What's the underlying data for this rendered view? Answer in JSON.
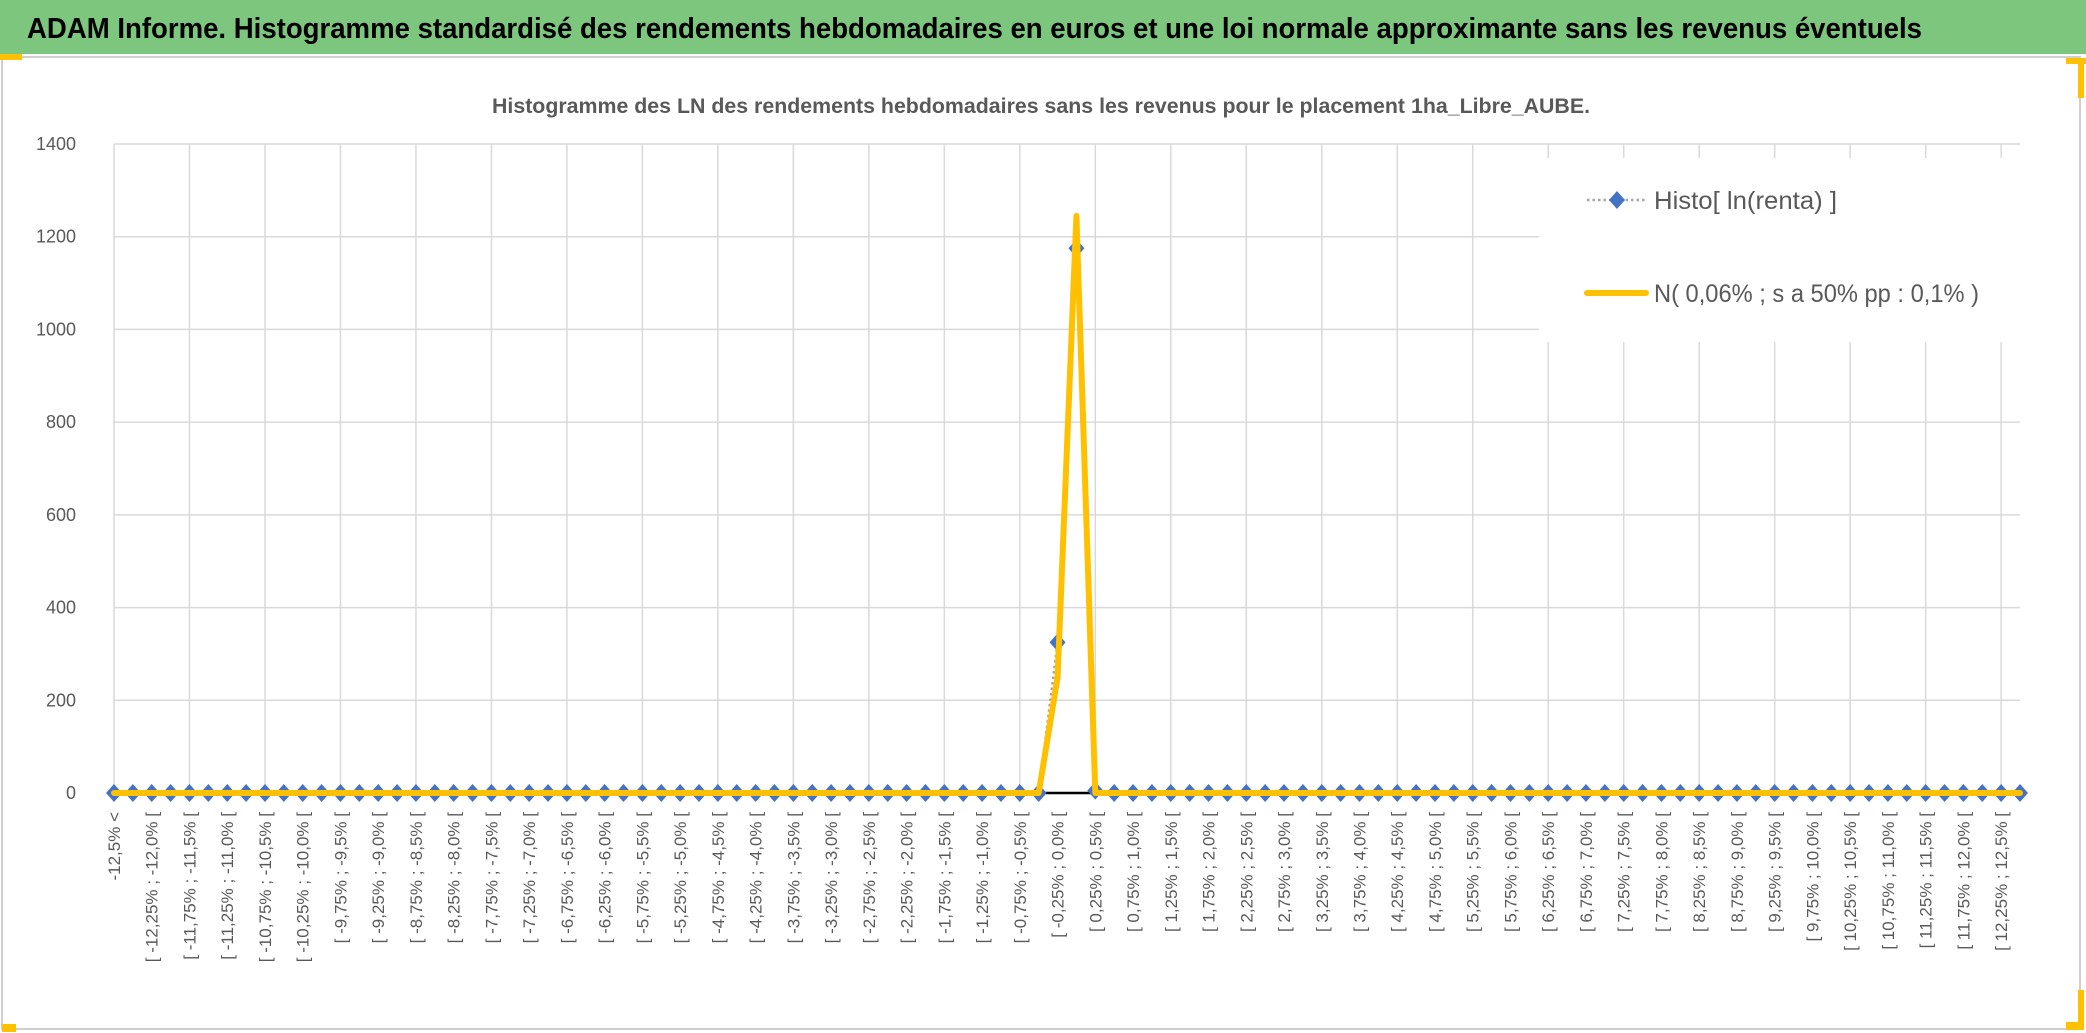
{
  "header": {
    "title": "ADAM Informe. Histogramme standardisé des rendements hebdomadaires en euros et une loi normale approximante sans les revenus éventuels",
    "background_color": "#7DC67E"
  },
  "chart_data": {
    "type": "line",
    "title": "Histogramme des LN des rendements hebdomadaires sans les revenus pour le placement 1ha_Libre_AUBE.",
    "xlabel": "",
    "ylabel": "",
    "ylim": [
      0,
      1400
    ],
    "y_ticks": [
      "0",
      "200",
      "400",
      "600",
      "800",
      "1000",
      "1200",
      "1400"
    ],
    "grid": true,
    "legend_position": "top-right",
    "x_tick_labels": [
      "-12,5% <",
      "[ -12,25% ; -12,0% [",
      "[ -11,75% ; -11,5% [",
      "[ -11,25% ; -11,0% [",
      "[ -10,75% ; -10,5% [",
      "[ -10,25% ; -10,0% [",
      "[ -9,75% ; -9,5% [",
      "[ -9,25% ; -9,0% [",
      "[ -8,75% ; -8,5% [",
      "[ -8,25% ; -8,0% [",
      "[ -7,75% ; -7,5% [",
      "[ -7,25% ; -7,0% [",
      "[ -6,75% ; -6,5% [",
      "[ -6,25% ; -6,0% [",
      "[ -5,75% ; -5,5% [",
      "[ -5,25% ; -5,0% [",
      "[ -4,75% ; -4,5% [",
      "[ -4,25% ; -4,0% [",
      "[ -3,75% ; -3,5% [",
      "[ -3,25% ; -3,0% [",
      "[ -2,75% ; -2,5% [",
      "[ -2,25% ; -2,0% [",
      "[ -1,75% ; -1,5% [",
      "[ -1,25% ; -1,0% [",
      "[ -0,75% ; -0,5% [",
      "[ -0,25% ; 0,0% [",
      "[ 0,25% ; 0,5% [",
      "[ 0,75% ; 1,0% [",
      "[ 1,25% ; 1,5% [",
      "[ 1,75% ; 2,0% [",
      "[ 2,25% ; 2,5% [",
      "[ 2,75% ; 3,0% [",
      "[ 3,25% ; 3,5% [",
      "[ 3,75% ; 4,0% [",
      "[ 4,25% ; 4,5% [",
      "[ 4,75% ; 5,0% [",
      "[ 5,25% ; 5,5% [",
      "[ 5,75% ; 6,0% [",
      "[ 6,25% ; 6,5% [",
      "[ 6,75% ; 7,0% [",
      "[ 7,25% ; 7,5% [",
      "[ 7,75% ; 8,0% [",
      "[ 8,25% ; 8,5% [",
      "[ 8,75% ; 9,0% [",
      "[ 9,25% ; 9,5% [",
      "[ 9,75% ; 10,0% [",
      "[ 10,25% ; 10,5% [",
      "[ 10,75% ; 11,0% [",
      "[ 11,25% ; 11,5% [",
      "[ 11,75% ; 12,0% [",
      "[ 12,25% ; 12,5% ["
    ],
    "series": [
      {
        "name": "Histo[ ln(renta) ]",
        "color": "#4472C4",
        "line_color": "#A5A5A5",
        "style": "dotted-line-diamond-markers",
        "values": [
          0,
          0,
          0,
          0,
          0,
          0,
          0,
          0,
          0,
          0,
          0,
          0,
          0,
          0,
          0,
          0,
          0,
          0,
          0,
          0,
          0,
          0,
          0,
          0,
          0,
          0,
          0,
          0,
          0,
          0,
          0,
          0,
          0,
          0,
          0,
          0,
          0,
          0,
          0,
          0,
          0,
          0,
          0,
          0,
          0,
          0,
          0,
          0,
          0,
          0,
          325,
          1175,
          5,
          0,
          0,
          0,
          0,
          0,
          0,
          0,
          0,
          0,
          0,
          0,
          0,
          0,
          0,
          0,
          0,
          0,
          0,
          0,
          0,
          0,
          0,
          0,
          0,
          0,
          0,
          0,
          0,
          0,
          0,
          0,
          0,
          0,
          0,
          0,
          0,
          0,
          0,
          0,
          0,
          0,
          0,
          0,
          0,
          0,
          0,
          0,
          0,
          0
        ]
      },
      {
        "name": "N( 0,06% ; s a 50% pp : 0,1% )",
        "color": "#FFC000",
        "style": "solid-line",
        "values": [
          0,
          0,
          0,
          0,
          0,
          0,
          0,
          0,
          0,
          0,
          0,
          0,
          0,
          0,
          0,
          0,
          0,
          0,
          0,
          0,
          0,
          0,
          0,
          0,
          0,
          0,
          0,
          0,
          0,
          0,
          0,
          0,
          0,
          0,
          0,
          0,
          0,
          0,
          0,
          0,
          0,
          0,
          0,
          0,
          0,
          0,
          0,
          0,
          0,
          0,
          250,
          1245,
          0,
          0,
          0,
          0,
          0,
          0,
          0,
          0,
          0,
          0,
          0,
          0,
          0,
          0,
          0,
          0,
          0,
          0,
          0,
          0,
          0,
          0,
          0,
          0,
          0,
          0,
          0,
          0,
          0,
          0,
          0,
          0,
          0,
          0,
          0,
          0,
          0,
          0,
          0,
          0,
          0,
          0,
          0,
          0,
          0,
          0,
          0,
          0,
          0,
          0
        ]
      }
    ]
  }
}
